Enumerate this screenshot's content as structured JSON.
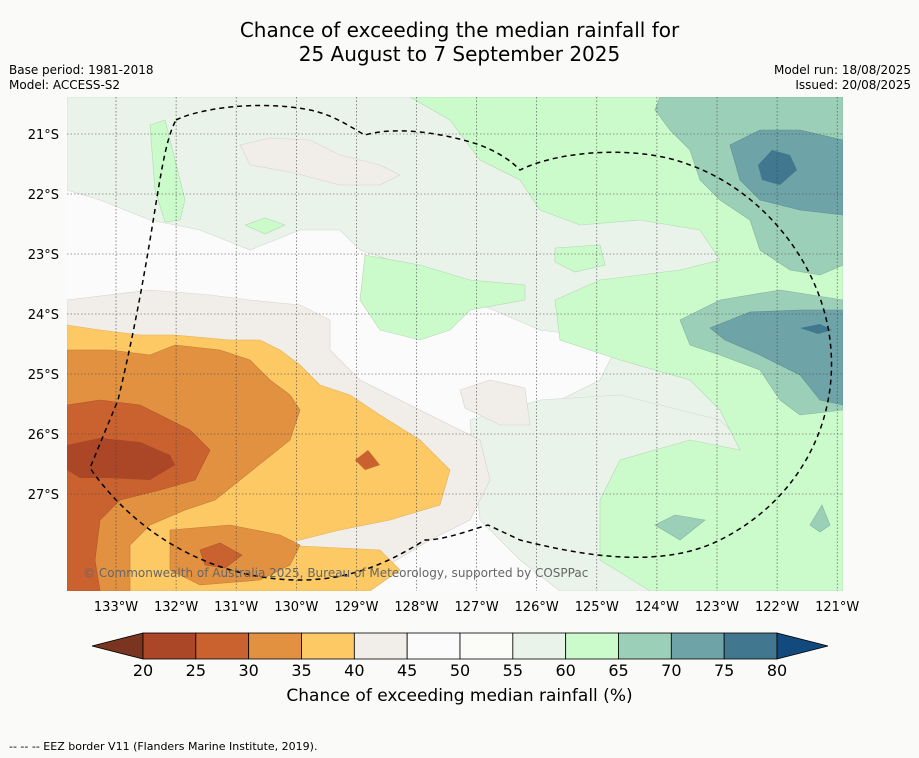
{
  "title_line1": "Chance of exceeding the median rainfall for",
  "title_line2": "25 August to 7 September 2025",
  "base_period": "Base period: 1981-2018",
  "model": "Model: ACCESS-S2",
  "model_run": "Model run: 18/08/2025",
  "issued": "Issued: 20/08/2025",
  "copyright": "© Commonwealth of Australia 2025, Bureau of Meteorology, supported by COSPPac",
  "lon_labels": [
    "133°W",
    "132°W",
    "131°W",
    "130°W",
    "129°W",
    "128°W",
    "127°W",
    "126°W",
    "125°W",
    "124°W",
    "123°W",
    "122°W",
    "121°W"
  ],
  "lat_labels": [
    "21°S",
    "22°S",
    "23°S",
    "24°S",
    "25°S",
    "26°S",
    "27°S"
  ],
  "colorbar": {
    "ticks": [
      "20",
      "25",
      "30",
      "35",
      "40",
      "45",
      "50",
      "55",
      "60",
      "65",
      "70",
      "75",
      "80"
    ],
    "colors": [
      "#ab4727",
      "#c9622f",
      "#e1913f",
      "#fcc965",
      "#f1ede8",
      "#fbfbfb",
      "#fbfbf8",
      "#eaf3e9",
      "#cbfacb",
      "#9ccfb7",
      "#6ea4a7",
      "#41778f"
    ],
    "under_color": "#7a3520",
    "over_color": "#134a7d",
    "label": "Chance of exceeding median rainfall (%)"
  },
  "eez_note": "--  --  -- EEZ border V11 (Flanders Marine Institute, 2019)."
}
